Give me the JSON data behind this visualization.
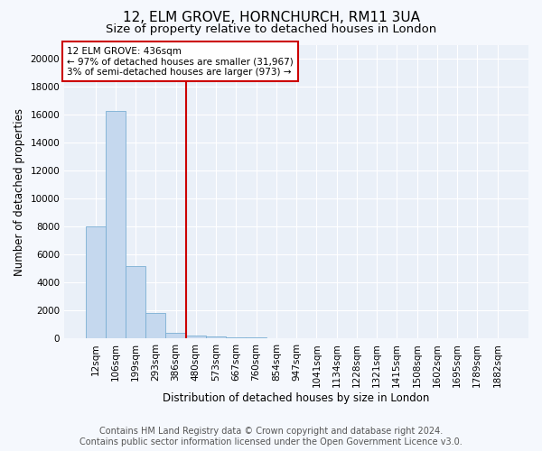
{
  "title": "12, ELM GROVE, HORNCHURCH, RM11 3UA",
  "subtitle": "Size of property relative to detached houses in London",
  "xlabel": "Distribution of detached houses by size in London",
  "ylabel": "Number of detached properties",
  "categories": [
    "12sqm",
    "106sqm",
    "199sqm",
    "293sqm",
    "386sqm",
    "480sqm",
    "573sqm",
    "667sqm",
    "760sqm",
    "854sqm",
    "947sqm",
    "1041sqm",
    "1134sqm",
    "1228sqm",
    "1321sqm",
    "1415sqm",
    "1508sqm",
    "1602sqm",
    "1695sqm",
    "1789sqm",
    "1882sqm"
  ],
  "values": [
    8000,
    16300,
    5200,
    1850,
    420,
    200,
    130,
    100,
    110,
    50,
    30,
    20,
    10,
    5,
    3,
    2,
    1,
    1,
    0,
    0,
    0
  ],
  "bar_color": "#c5d8ee",
  "bar_edge_color": "#7aafd4",
  "vline_color": "#cc0000",
  "annotation_title": "12 ELM GROVE: 436sqm",
  "annotation_line1": "← 97% of detached houses are smaller (31,967)",
  "annotation_line2": "3% of semi-detached houses are larger (973) →",
  "annotation_box_color": "#cc0000",
  "ylim": [
    0,
    21000
  ],
  "yticks": [
    0,
    2000,
    4000,
    6000,
    8000,
    10000,
    12000,
    14000,
    16000,
    18000,
    20000
  ],
  "footer_line1": "Contains HM Land Registry data © Crown copyright and database right 2024.",
  "footer_line2": "Contains public sector information licensed under the Open Government Licence v3.0.",
  "bg_color": "#f5f8fd",
  "plot_bg_color": "#eaf0f8",
  "grid_color": "#ffffff",
  "title_fontsize": 11,
  "subtitle_fontsize": 9.5,
  "label_fontsize": 8.5,
  "tick_fontsize": 7.5,
  "footer_fontsize": 7
}
